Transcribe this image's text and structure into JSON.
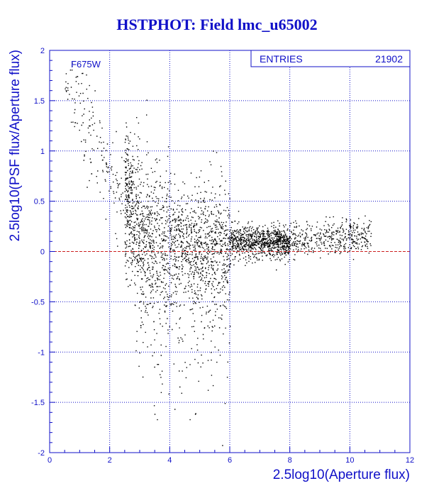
{
  "title": "HSTPHOT: Field lmc_u65002",
  "stats_box": {
    "label": "ENTRIES",
    "value": "21902"
  },
  "filter_label": "F675W",
  "colors": {
    "text": "#1010c8",
    "grid": "#1010c8",
    "points": "#000000",
    "reference_line": "#cc2020"
  },
  "chart_data": {
    "type": "scatter",
    "title": "HSTPHOT: Field lmc_u65002",
    "xlabel": "2.5log10(Aperture flux)",
    "ylabel": "2.5log10(PSF flux/Aperture flux)",
    "xlim": [
      0,
      12
    ],
    "ylim": [
      -2,
      2
    ],
    "x_ticks": [
      "0",
      "2",
      "4",
      "6",
      "8",
      "10",
      "12"
    ],
    "y_ticks": [
      "-2",
      "-1.5",
      "-1",
      "-0.5",
      "0",
      "0.5",
      "1",
      "1.5",
      "2"
    ],
    "grid": true,
    "reference_line_y": 0,
    "entries": 21902,
    "series": [
      {
        "name": "F675W",
        "description_points": [
          [
            0.6,
            1.7
          ],
          [
            0.8,
            1.55
          ],
          [
            1.0,
            1.4
          ],
          [
            1.2,
            1.3
          ],
          [
            1.4,
            1.15
          ],
          [
            1.6,
            1.0
          ],
          [
            1.8,
            0.95
          ],
          [
            2.0,
            0.85
          ],
          [
            2.2,
            0.75
          ],
          [
            2.5,
            0.55
          ],
          [
            2.8,
            0.42
          ],
          [
            3.0,
            0.3
          ],
          [
            3.5,
            0.2
          ],
          [
            4.0,
            0.15
          ],
          [
            5.0,
            0.12
          ],
          [
            6.0,
            0.1
          ],
          [
            7.0,
            0.1
          ],
          [
            8.0,
            0.1
          ],
          [
            9.0,
            0.12
          ],
          [
            10.0,
            0.15
          ],
          [
            10.5,
            0.17
          ]
        ]
      }
    ]
  }
}
